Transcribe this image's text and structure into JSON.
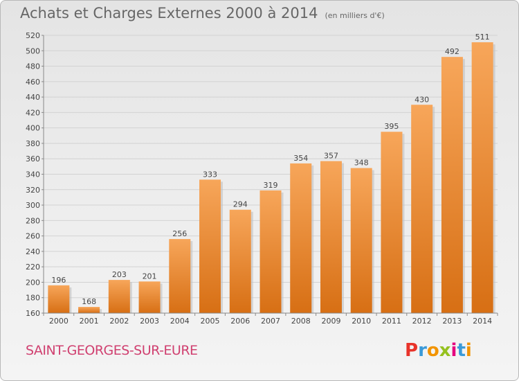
{
  "header": {
    "title": "Achats et Charges Externes 2000 à 2014",
    "subtitle": "(en milliers d'€)"
  },
  "footer": {
    "commune": "SAINT-GEORGES-SUR-EURE",
    "logo_text": "Proxiti"
  },
  "colors": {
    "bar_top": "#f7a65a",
    "bar_bottom": "#d76f14",
    "commune": "#d04070"
  },
  "chart_data": {
    "type": "bar",
    "categories": [
      "2000",
      "2001",
      "2002",
      "2003",
      "2004",
      "2005",
      "2006",
      "2007",
      "2008",
      "2009",
      "2010",
      "2011",
      "2012",
      "2013",
      "2014"
    ],
    "values": [
      196,
      168,
      203,
      201,
      256,
      333,
      294,
      319,
      354,
      357,
      348,
      395,
      430,
      492,
      511
    ],
    "ylim": [
      160,
      520
    ],
    "yticks": [
      160,
      180,
      200,
      220,
      240,
      260,
      280,
      300,
      320,
      340,
      360,
      380,
      400,
      420,
      440,
      460,
      480,
      500,
      520
    ],
    "grid": true,
    "legend": "none"
  }
}
